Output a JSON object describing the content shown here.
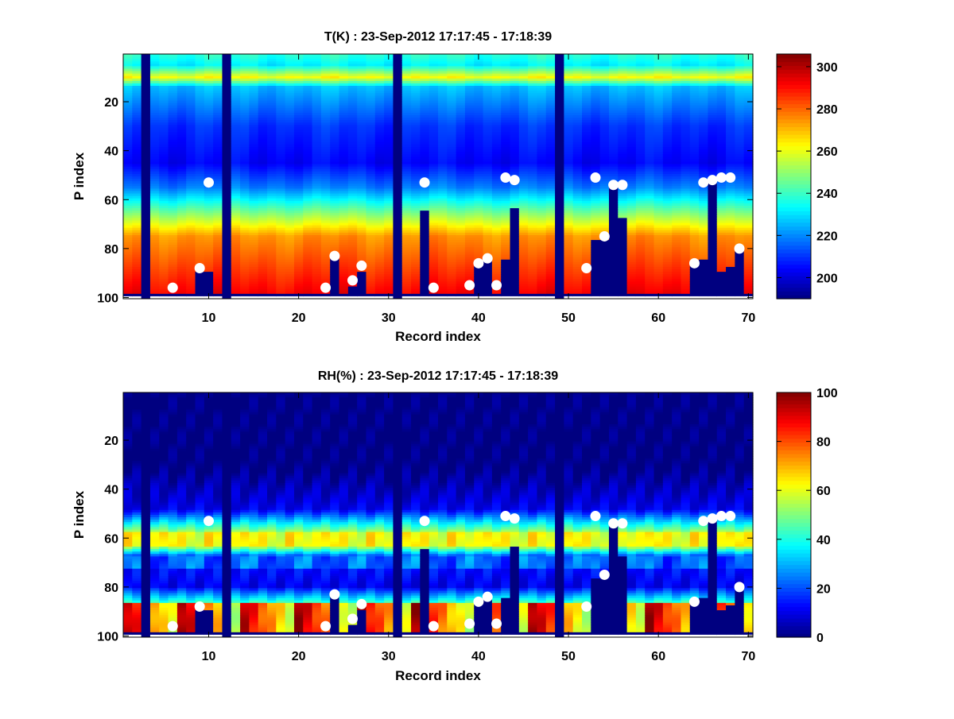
{
  "figure": {
    "background": "#ffffff"
  },
  "chart_data": [
    {
      "type": "heatmap",
      "title": "T(K) : 23-Sep-2012 17:17:45 - 17:18:39",
      "xlabel": "Record index",
      "ylabel": "P index",
      "xlim": [
        0.5,
        70.5
      ],
      "ylim": [
        100.5,
        0.5
      ],
      "y_reversed": true,
      "xticks": [
        10,
        20,
        30,
        40,
        50,
        60,
        70
      ],
      "yticks": [
        20,
        40,
        60,
        80,
        100
      ],
      "colormap": "jet",
      "clim": [
        190,
        306
      ],
      "colorbar_ticks": [
        200,
        220,
        240,
        260,
        280,
        300
      ],
      "field": "temperature",
      "n_records": 70,
      "n_levels": 100,
      "invalid_records": [
        3,
        12,
        31,
        49
      ],
      "surface_level": [
        99,
        99,
        100,
        99,
        99,
        99,
        99,
        99,
        90,
        90,
        99,
        100,
        99,
        99,
        99,
        99,
        99,
        99,
        99,
        99,
        99,
        99,
        99,
        83,
        99,
        96,
        90,
        99,
        99,
        99,
        100,
        99,
        99,
        65,
        99,
        99,
        99,
        99,
        99,
        87,
        85,
        99,
        85,
        64,
        99,
        99,
        99,
        99,
        100,
        99,
        99,
        99,
        77,
        77,
        55,
        68,
        99,
        99,
        99,
        99,
        99,
        99,
        99,
        87,
        85,
        53,
        90,
        88,
        81,
        99
      ],
      "markers": [
        {
          "x": 6,
          "y": 96
        },
        {
          "x": 9,
          "y": 88
        },
        {
          "x": 10,
          "y": 53
        },
        {
          "x": 23,
          "y": 96
        },
        {
          "x": 24,
          "y": 83
        },
        {
          "x": 26,
          "y": 93
        },
        {
          "x": 27,
          "y": 87
        },
        {
          "x": 34,
          "y": 53
        },
        {
          "x": 35,
          "y": 96
        },
        {
          "x": 39,
          "y": 95
        },
        {
          "x": 40,
          "y": 86
        },
        {
          "x": 41,
          "y": 84
        },
        {
          "x": 42,
          "y": 95
        },
        {
          "x": 43,
          "y": 51
        },
        {
          "x": 44,
          "y": 52
        },
        {
          "x": 52,
          "y": 88
        },
        {
          "x": 53,
          "y": 51
        },
        {
          "x": 54,
          "y": 75
        },
        {
          "x": 55,
          "y": 54
        },
        {
          "x": 56,
          "y": 54
        },
        {
          "x": 64,
          "y": 86
        },
        {
          "x": 65,
          "y": 53
        },
        {
          "x": 66,
          "y": 52
        },
        {
          "x": 67,
          "y": 51
        },
        {
          "x": 68,
          "y": 51
        },
        {
          "x": 69,
          "y": 80
        }
      ]
    },
    {
      "type": "heatmap",
      "title": "RH(%) : 23-Sep-2012 17:17:45 - 17:18:39",
      "xlabel": "Record index",
      "ylabel": "P index",
      "xlim": [
        0.5,
        70.5
      ],
      "ylim": [
        100.5,
        0.5
      ],
      "y_reversed": true,
      "xticks": [
        10,
        20,
        30,
        40,
        50,
        60,
        70
      ],
      "yticks": [
        20,
        40,
        60,
        80,
        100
      ],
      "colormap": "jet",
      "clim": [
        0,
        100
      ],
      "colorbar_ticks": [
        0,
        20,
        40,
        60,
        80,
        100
      ],
      "field": "humidity",
      "n_records": 70,
      "n_levels": 100,
      "invalid_records": [
        3,
        12,
        31,
        49
      ],
      "surface_level": [
        99,
        99,
        100,
        99,
        99,
        99,
        99,
        99,
        90,
        90,
        99,
        100,
        99,
        99,
        99,
        99,
        99,
        99,
        99,
        99,
        99,
        99,
        99,
        83,
        99,
        96,
        90,
        99,
        99,
        99,
        100,
        99,
        99,
        65,
        99,
        99,
        99,
        99,
        99,
        87,
        85,
        99,
        85,
        64,
        99,
        99,
        99,
        99,
        100,
        99,
        99,
        99,
        77,
        77,
        55,
        68,
        99,
        99,
        99,
        99,
        99,
        99,
        99,
        87,
        85,
        53,
        90,
        88,
        81,
        99
      ],
      "markers": [
        {
          "x": 6,
          "y": 96
        },
        {
          "x": 9,
          "y": 88
        },
        {
          "x": 10,
          "y": 53
        },
        {
          "x": 23,
          "y": 96
        },
        {
          "x": 24,
          "y": 83
        },
        {
          "x": 26,
          "y": 93
        },
        {
          "x": 27,
          "y": 87
        },
        {
          "x": 34,
          "y": 53
        },
        {
          "x": 35,
          "y": 96
        },
        {
          "x": 39,
          "y": 95
        },
        {
          "x": 40,
          "y": 86
        },
        {
          "x": 41,
          "y": 84
        },
        {
          "x": 42,
          "y": 95
        },
        {
          "x": 43,
          "y": 51
        },
        {
          "x": 44,
          "y": 52
        },
        {
          "x": 52,
          "y": 88
        },
        {
          "x": 53,
          "y": 51
        },
        {
          "x": 54,
          "y": 75
        },
        {
          "x": 55,
          "y": 54
        },
        {
          "x": 56,
          "y": 54
        },
        {
          "x": 64,
          "y": 86
        },
        {
          "x": 65,
          "y": 53
        },
        {
          "x": 66,
          "y": 52
        },
        {
          "x": 67,
          "y": 51
        },
        {
          "x": 68,
          "y": 51
        },
        {
          "x": 69,
          "y": 80
        }
      ]
    }
  ]
}
